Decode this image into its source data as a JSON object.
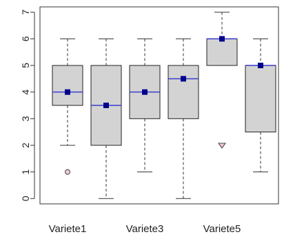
{
  "chart_data": {
    "type": "boxplot",
    "title": "",
    "xlabel": "",
    "ylabel": "",
    "ylim": [
      -0.2,
      7.2
    ],
    "y_ticks": [
      0,
      1,
      2,
      3,
      4,
      5,
      6,
      7
    ],
    "y_tick_labels": [
      "0",
      "1",
      "2",
      "3",
      "4",
      "5",
      "6",
      "7"
    ],
    "x_tick_labels_shown": [
      "Variete1",
      "",
      "Variete3",
      "",
      "Variete5",
      ""
    ],
    "colors": {
      "box_fill": "#d3d3d3",
      "box_border": "#222222",
      "median_line": "#3a3acc",
      "mean_marker": "#00008b",
      "outlier_fill": "#f3c9d0",
      "outlier_border": "#444444"
    },
    "boxes": [
      {
        "q1": 3.5,
        "median": 4.0,
        "q3": 5.0,
        "whisker_low": 2.0,
        "whisker_high": 6.0,
        "mean": 4.0,
        "outliers": [
          1.0
        ]
      },
      {
        "q1": 2.0,
        "median": 3.5,
        "q3": 5.0,
        "whisker_low": 0.0,
        "whisker_high": 6.0,
        "mean": 3.5,
        "outliers": []
      },
      {
        "q1": 3.0,
        "median": 4.0,
        "q3": 5.0,
        "whisker_low": 1.0,
        "whisker_high": 6.0,
        "mean": 4.0,
        "outliers": []
      },
      {
        "q1": 3.0,
        "median": 4.5,
        "q3": 5.0,
        "whisker_low": 0.0,
        "whisker_high": 6.0,
        "mean": 4.5,
        "outliers": []
      },
      {
        "q1": 5.0,
        "median": 6.0,
        "q3": 6.0,
        "whisker_low": 5.0,
        "whisker_high": 7.0,
        "mean": 6.0,
        "outliers": [
          2.0
        ]
      },
      {
        "q1": 2.5,
        "median": 5.0,
        "q3": 5.0,
        "whisker_low": 1.0,
        "whisker_high": 6.0,
        "mean": 5.0,
        "outliers": []
      }
    ]
  }
}
